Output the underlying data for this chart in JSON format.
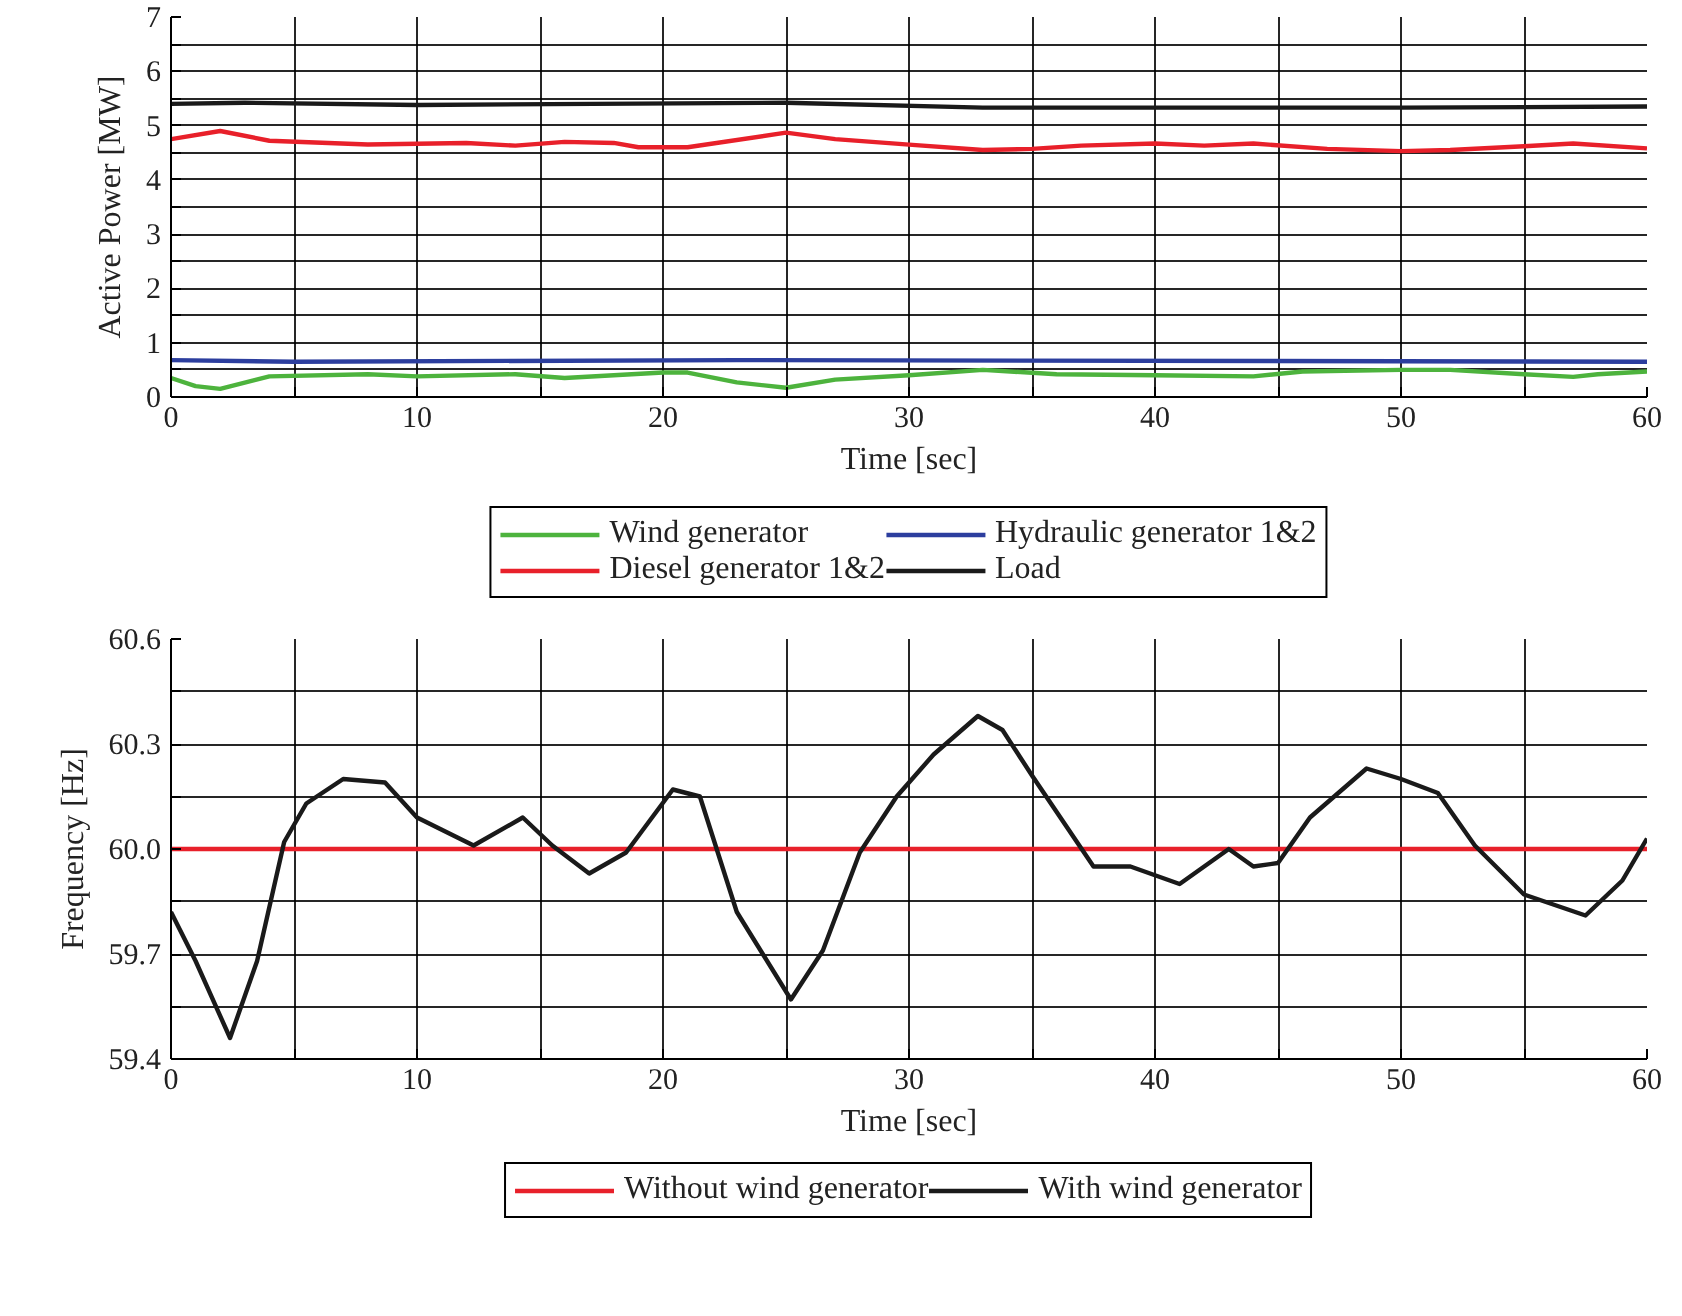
{
  "chart_data": [
    {
      "type": "line",
      "xlabel": "Time [sec]",
      "ylabel": "Active Power [MW]",
      "xlim": [
        0,
        60
      ],
      "ylim": [
        0,
        7
      ],
      "xticks": [
        0,
        {
          "value": 5,
          "label": null
        },
        10,
        {
          "value": 15,
          "label": null
        },
        20,
        {
          "value": 25,
          "label": null
        },
        30,
        {
          "value": 35,
          "label": null
        },
        40,
        {
          "value": 45,
          "label": null
        },
        50,
        {
          "value": 55,
          "label": null
        },
        60
      ],
      "yticks": [
        0,
        {
          "value": 0.5,
          "label": null
        },
        1,
        {
          "value": 1.5,
          "label": null
        },
        2,
        {
          "value": 2.5,
          "label": null
        },
        3,
        {
          "value": 3.5,
          "label": null
        },
        4,
        {
          "value": 4.5,
          "label": null
        },
        5,
        {
          "value": 5.5,
          "label": null
        },
        6,
        {
          "value": 6.5,
          "label": null
        },
        7
      ],
      "grid": true,
      "legend": "bottom",
      "line_style": "solid",
      "marker": "none",
      "series": [
        {
          "name": "Wind generator",
          "color": "#4db33d",
          "x": [
            0,
            1,
            2,
            4,
            8,
            10,
            14,
            16,
            20,
            21,
            23,
            25,
            27,
            30,
            33,
            36,
            40,
            44,
            46,
            50,
            52,
            55,
            57,
            58,
            60
          ],
          "values": [
            0.35,
            0.2,
            0.15,
            0.38,
            0.42,
            0.38,
            0.42,
            0.35,
            0.45,
            0.45,
            0.27,
            0.17,
            0.32,
            0.4,
            0.5,
            0.42,
            0.4,
            0.38,
            0.47,
            0.5,
            0.5,
            0.42,
            0.37,
            0.42,
            0.47
          ]
        },
        {
          "name": "Hydraulic generator 1&2",
          "color": "#2c3e9e",
          "x": [
            0,
            5,
            23,
            60
          ],
          "values": [
            0.68,
            0.65,
            0.68,
            0.65
          ]
        },
        {
          "name": "Diesel generator 1&2",
          "color": "#e8202a",
          "x": [
            0,
            2,
            4,
            8,
            12,
            14,
            16,
            18,
            19,
            21,
            25,
            27,
            30,
            33,
            35,
            37,
            40,
            42,
            44,
            47,
            50,
            52,
            55,
            57,
            60
          ],
          "values": [
            4.75,
            4.9,
            4.72,
            4.65,
            4.68,
            4.63,
            4.7,
            4.68,
            4.6,
            4.6,
            4.87,
            4.75,
            4.65,
            4.55,
            4.57,
            4.63,
            4.67,
            4.63,
            4.67,
            4.57,
            4.53,
            4.55,
            4.62,
            4.67,
            4.58
          ]
        },
        {
          "name": "Load",
          "color": "#1a1a1a",
          "x": [
            0,
            3,
            10,
            25,
            33,
            50,
            60
          ],
          "values": [
            5.4,
            5.42,
            5.38,
            5.42,
            5.33,
            5.33,
            5.35
          ]
        }
      ]
    },
    {
      "type": "line",
      "xlabel": "Time [sec]",
      "ylabel": "Frequency [Hz]",
      "xlim": [
        0,
        60
      ],
      "ylim": [
        59.4,
        60.6
      ],
      "xticks": [
        0,
        {
          "value": 5,
          "label": null
        },
        10,
        {
          "value": 15,
          "label": null
        },
        20,
        {
          "value": 25,
          "label": null
        },
        30,
        {
          "value": 35,
          "label": null
        },
        40,
        {
          "value": 45,
          "label": null
        },
        50,
        {
          "value": 55,
          "label": null
        },
        60
      ],
      "yticks": [
        {
          "value": 59.4,
          "label": "59.4"
        },
        {
          "value": 59.55,
          "label": null
        },
        {
          "value": 59.7,
          "label": "59.7"
        },
        {
          "value": 59.85,
          "label": null
        },
        {
          "value": 60.0,
          "label": "60.0"
        },
        {
          "value": 60.15,
          "label": null
        },
        {
          "value": 60.3,
          "label": "60.3"
        },
        {
          "value": 60.45,
          "label": null
        },
        {
          "value": 60.6,
          "label": "60.6"
        }
      ],
      "grid": true,
      "legend": "bottom",
      "line_style": "solid",
      "marker": "none",
      "series": [
        {
          "name": "Without wind generator",
          "color": "#e8202a",
          "x": [
            0,
            60
          ],
          "values": [
            60.0,
            60.0
          ]
        },
        {
          "name": "With wind generator",
          "color": "#1a1a1a",
          "x": [
            0,
            1,
            2.4,
            3.5,
            4.6,
            5.5,
            7,
            8.7,
            10,
            12.3,
            14.3,
            15.5,
            17,
            18.5,
            20.4,
            21.5,
            23,
            25.2,
            26.5,
            28,
            29.5,
            31,
            32.8,
            33.8,
            35,
            37.5,
            39,
            41,
            43,
            44,
            45,
            46.3,
            48.6,
            50,
            51.5,
            53,
            55,
            57.5,
            59,
            60
          ],
          "values": [
            59.82,
            59.68,
            59.46,
            59.68,
            60.02,
            60.13,
            60.2,
            60.19,
            60.09,
            60.01,
            60.09,
            60.01,
            59.93,
            59.99,
            60.17,
            60.15,
            59.82,
            59.57,
            59.71,
            59.99,
            60.15,
            60.27,
            60.38,
            60.34,
            60.21,
            59.95,
            59.95,
            59.9,
            60.0,
            59.95,
            59.96,
            60.09,
            60.23,
            60.2,
            60.16,
            60.01,
            59.87,
            59.81,
            59.91,
            60.03
          ]
        }
      ]
    }
  ]
}
